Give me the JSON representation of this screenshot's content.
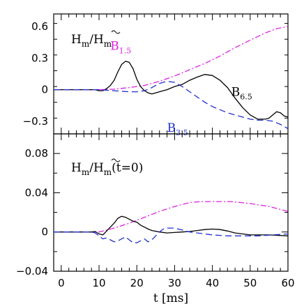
{
  "chart_data": [
    {
      "type": "line",
      "panel": "top",
      "annotation": {
        "main": "H",
        "sub": "m",
        "slash": "/",
        "tilde_main": "H",
        "tilde_sub": "m",
        "suffix": ""
      },
      "xlim": [
        -2,
        60
      ],
      "ylim": [
        -0.42,
        0.72
      ],
      "y_ticks": [
        -0.3,
        0,
        0.3,
        0.6
      ],
      "y_tick_labels": [
        "−0.3",
        "0",
        "0.3",
        "0.6"
      ],
      "series": [
        {
          "name": "B",
          "sub": "1.5",
          "color": "#e020e0",
          "dash": "8,3,2,3",
          "x": [
            -2,
            5,
            10,
            14,
            18,
            22,
            26,
            30,
            34,
            38,
            42,
            46,
            50,
            54,
            57,
            60
          ],
          "y": [
            0,
            0,
            0,
            0.005,
            0.02,
            0.04,
            0.08,
            0.13,
            0.19,
            0.25,
            0.32,
            0.4,
            0.47,
            0.54,
            0.58,
            0.6
          ]
        },
        {
          "name": "B",
          "sub": "6.5",
          "color": "#000000",
          "dash": "",
          "x": [
            -2,
            5,
            8,
            9,
            10,
            11,
            12,
            13,
            14,
            15,
            16,
            17,
            18,
            19,
            20,
            21,
            22,
            23,
            24,
            26,
            28,
            30,
            32,
            34,
            36,
            38,
            40,
            42,
            44,
            46,
            48,
            50,
            52,
            54,
            55,
            56,
            57,
            58,
            59,
            60
          ],
          "y": [
            0,
            0,
            0,
            0,
            -0.01,
            -0.01,
            0.01,
            0.04,
            0.09,
            0.17,
            0.24,
            0.27,
            0.26,
            0.2,
            0.1,
            0.03,
            -0.01,
            -0.03,
            -0.04,
            -0.02,
            0.0,
            0.03,
            0.05,
            0.09,
            0.12,
            0.145,
            0.135,
            0.09,
            0.02,
            -0.08,
            -0.17,
            -0.24,
            -0.28,
            -0.28,
            -0.27,
            -0.24,
            -0.21,
            -0.22,
            -0.25,
            -0.26
          ]
        },
        {
          "name": "B",
          "sub": "3.5",
          "color": "#2030d0",
          "dash": "9,5",
          "x": [
            -2,
            5,
            10,
            12,
            14,
            16,
            18,
            20,
            22,
            24,
            26,
            28,
            30,
            32,
            34,
            36,
            38,
            40,
            42,
            44,
            46,
            48,
            50,
            52,
            54,
            56,
            58,
            60
          ],
          "y": [
            0,
            0,
            0,
            -0.005,
            -0.01,
            -0.015,
            -0.02,
            -0.02,
            -0.01,
            0.02,
            0.06,
            0.08,
            0.07,
            0.03,
            -0.02,
            -0.07,
            -0.12,
            -0.16,
            -0.19,
            -0.22,
            -0.24,
            -0.26,
            -0.28,
            -0.29,
            -0.29,
            -0.3,
            -0.33,
            -0.37
          ]
        }
      ],
      "labels": [
        {
          "name": "B",
          "sub": "1.5",
          "color": "#e020e0",
          "at": [
            13,
            0.38
          ]
        },
        {
          "name": "B",
          "sub": "6.5",
          "color": "#000000",
          "at": [
            45,
            -0.06
          ]
        },
        {
          "name": "B",
          "sub": "3.5",
          "color": "#2030d0",
          "at": [
            28,
            -0.4
          ]
        }
      ]
    },
    {
      "type": "line",
      "panel": "bottom",
      "annotation": {
        "main": "H",
        "sub": "m",
        "slash": "/",
        "tilde_main": "H",
        "tilde_sub": "m",
        "suffix": "(t=0)"
      },
      "xlim": [
        -2,
        60
      ],
      "ylim": [
        -0.04,
        0.1
      ],
      "y_ticks": [
        -0.04,
        0,
        0.04,
        0.08
      ],
      "y_tick_labels": [
        "−0.04",
        "0",
        "0.04",
        "0.08"
      ],
      "x_ticks": [
        0,
        10,
        20,
        30,
        40,
        50,
        60
      ],
      "x_tick_labels": [
        "0",
        "10",
        "20",
        "30",
        "40",
        "50",
        "60"
      ],
      "xlabel": "t [ms]",
      "series": [
        {
          "name": "B",
          "sub": "1.5",
          "color": "#e020e0",
          "dash": "8,3,2,3",
          "x": [
            -2,
            5,
            10,
            14,
            18,
            22,
            26,
            30,
            34,
            37,
            40,
            45,
            50,
            55,
            60
          ],
          "y": [
            0,
            0,
            0,
            0.004,
            0.009,
            0.015,
            0.021,
            0.026,
            0.03,
            0.031,
            0.031,
            0.031,
            0.029,
            0.026,
            0.021
          ]
        },
        {
          "name": "B",
          "sub": "6.5",
          "color": "#000000",
          "dash": "",
          "x": [
            -2,
            5,
            8,
            9,
            10,
            11,
            12,
            13,
            14,
            15,
            16,
            17,
            18,
            19,
            20,
            21,
            22,
            23,
            24,
            26,
            28,
            30,
            32,
            34,
            36,
            38,
            40,
            42,
            44,
            46,
            50,
            55,
            60
          ],
          "y": [
            0,
            0,
            0,
            0.0005,
            -0.002,
            -0.003,
            0.001,
            0.005,
            0.009,
            0.014,
            0.016,
            0.015,
            0.013,
            0.011,
            0.01,
            0.007,
            0.005,
            0.003,
            0.0015,
            0.0,
            -0.001,
            -0.0005,
            0.0,
            0.0005,
            0.0015,
            0.0025,
            0.003,
            0.0025,
            0.001,
            -0.001,
            -0.003,
            -0.003,
            -0.004
          ]
        },
        {
          "name": "B",
          "sub": "3.5",
          "color": "#2030d0",
          "dash": "9,5",
          "x": [
            -2,
            5,
            8,
            9,
            10,
            11,
            12,
            13,
            14,
            15,
            16,
            17,
            18,
            19,
            20,
            21,
            22,
            23,
            24,
            25,
            26,
            27,
            28,
            30,
            32,
            34,
            36,
            38,
            40,
            44,
            48,
            52,
            56,
            60
          ],
          "y": [
            0,
            0,
            0,
            -0.001,
            -0.004,
            -0.007,
            -0.006,
            -0.008,
            -0.01,
            -0.009,
            -0.007,
            -0.005,
            -0.008,
            -0.011,
            -0.011,
            -0.009,
            -0.007,
            -0.01,
            -0.008,
            -0.004,
            0.0,
            0.003,
            0.004,
            0.004,
            0.002,
            0.0,
            -0.001,
            -0.002,
            -0.003,
            -0.004,
            -0.004,
            -0.004,
            -0.003,
            -0.002
          ]
        }
      ]
    }
  ]
}
